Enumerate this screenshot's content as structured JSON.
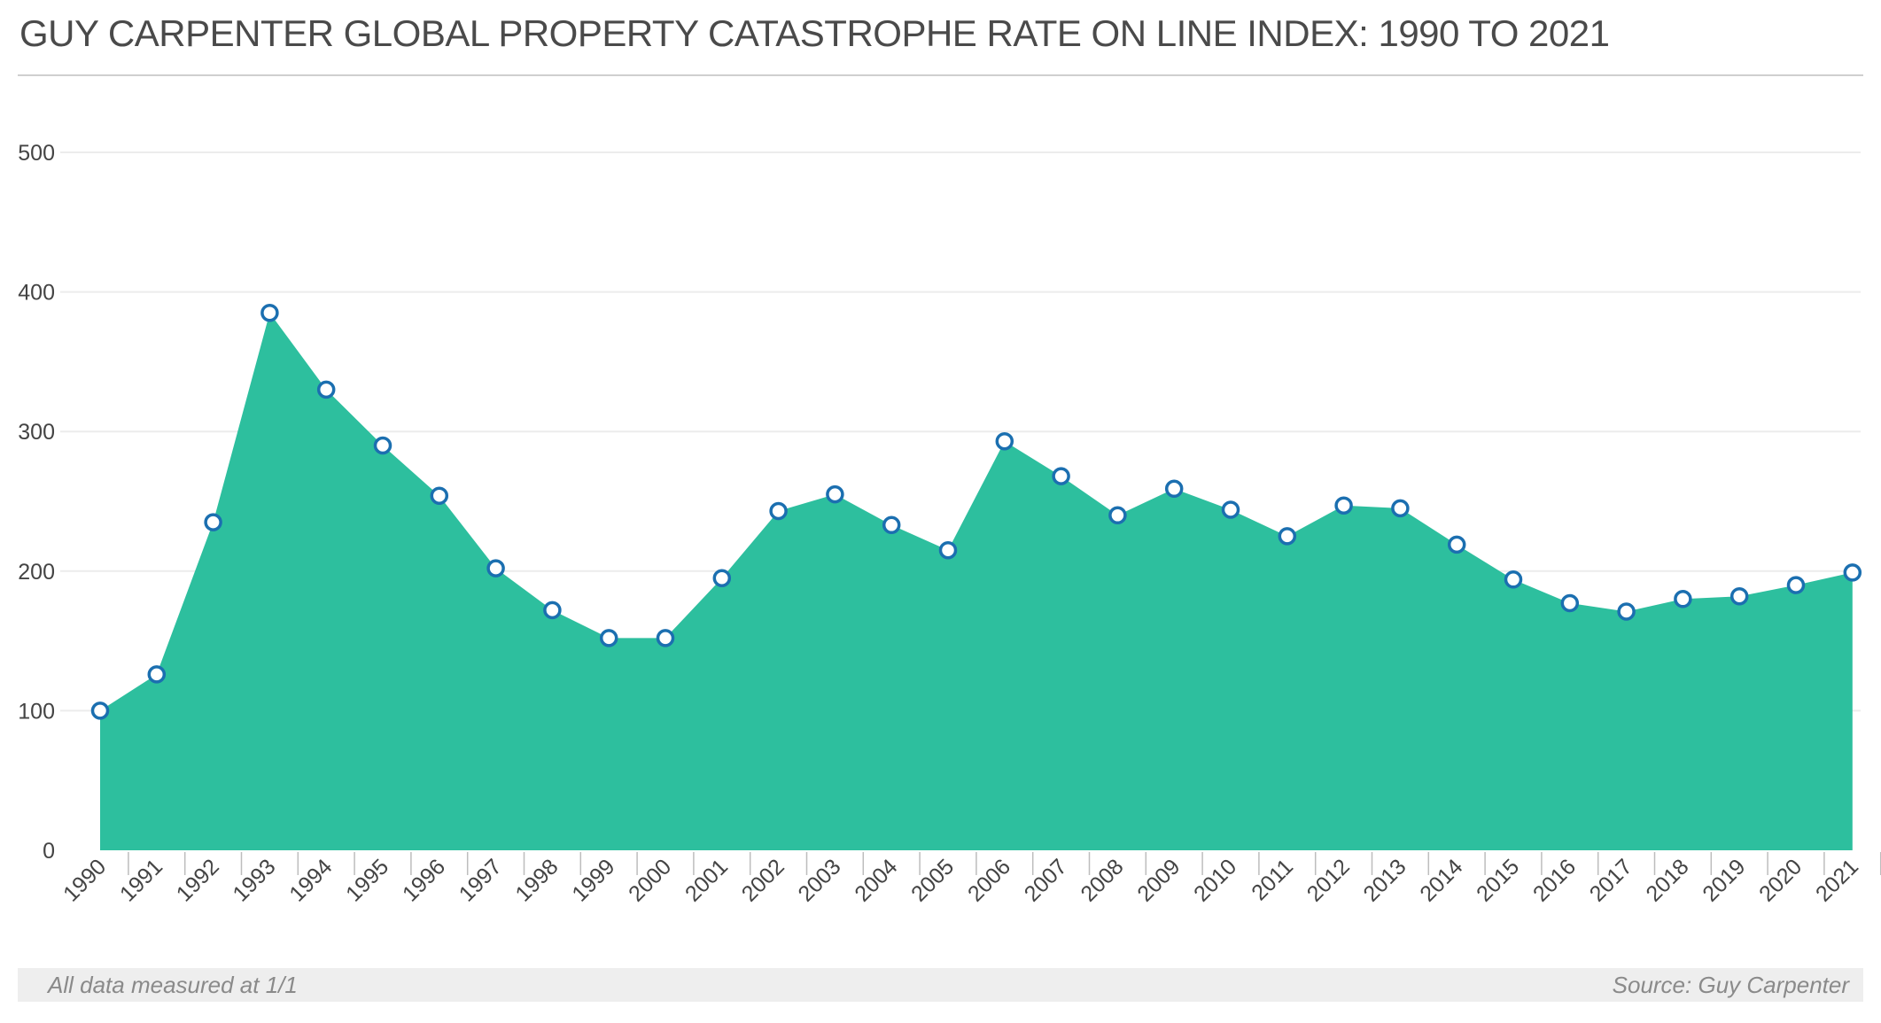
{
  "colors": {
    "area_fill": "#2dbf9e",
    "point_stroke": "#1b6fb0",
    "gridline": "#ececec"
  },
  "footer": {
    "note": "All data measured at 1/1",
    "source": "Source: Guy Carpenter"
  },
  "chart_data": {
    "type": "area",
    "title": "GUY CARPENTER GLOBAL PROPERTY CATASTROPHE RATE ON LINE INDEX: 1990 TO 2021",
    "xlabel": "",
    "ylabel": "",
    "ylim": [
      0,
      500
    ],
    "yticks": [
      0,
      100,
      200,
      300,
      400,
      500
    ],
    "grid": true,
    "legend": "none",
    "categories": [
      "1990",
      "1991",
      "1992",
      "1993",
      "1994",
      "1995",
      "1996",
      "1997",
      "1998",
      "1999",
      "2000",
      "2001",
      "2002",
      "2003",
      "2004",
      "2005",
      "2006",
      "2007",
      "2008",
      "2009",
      "2010",
      "2011",
      "2012",
      "2013",
      "2014",
      "2015",
      "2016",
      "2017",
      "2018",
      "2019",
      "2020",
      "2021"
    ],
    "values": [
      100,
      126,
      235,
      385,
      330,
      290,
      254,
      202,
      172,
      152,
      152,
      195,
      243,
      255,
      233,
      215,
      293,
      268,
      240,
      259,
      244,
      225,
      247,
      245,
      219,
      194,
      177,
      171,
      180,
      182,
      190,
      199
    ]
  }
}
